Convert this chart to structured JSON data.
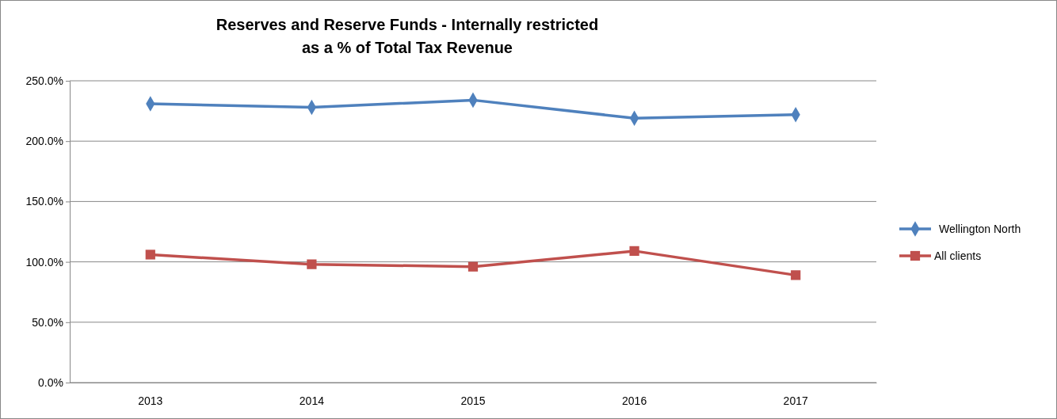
{
  "chart_data": {
    "type": "line",
    "title": "Reserves and Reserve Funds - Internally restricted\nas a % of Total Tax Revenue",
    "categories": [
      "2013",
      "2014",
      "2015",
      "2016",
      "2017"
    ],
    "series": [
      {
        "name": "Wellington North",
        "color": "#4f81bd",
        "marker": "diamond",
        "values": [
          231,
          228,
          234,
          219,
          222
        ]
      },
      {
        "name": "All clients",
        "color": "#c0504d",
        "marker": "square",
        "values": [
          106,
          98,
          96,
          109,
          89
        ]
      }
    ],
    "ylim": [
      0,
      250
    ],
    "yticks": [
      {
        "value": 0,
        "label": "0.0%"
      },
      {
        "value": 50,
        "label": "50.0%"
      },
      {
        "value": 100,
        "label": "100.0%"
      },
      {
        "value": 150,
        "label": "150.0%"
      },
      {
        "value": 200,
        "label": "200.0%"
      },
      {
        "value": 250,
        "label": "250.0%"
      }
    ],
    "grid": "y",
    "legend": "right"
  }
}
